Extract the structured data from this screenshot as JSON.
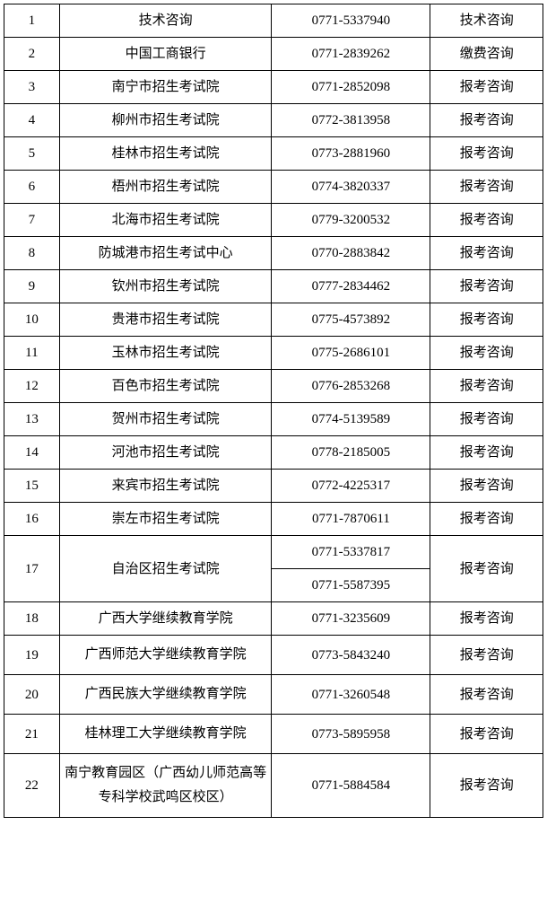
{
  "table": {
    "background_color": "#ffffff",
    "border_color": "#000000",
    "text_color": "#000000",
    "font_size": 15,
    "font_family": "SimSun",
    "columns": {
      "num_width": 60,
      "org_width": 230,
      "phone_width": 172,
      "type_width": 122
    },
    "rows": [
      {
        "num": "1",
        "org": "技术咨询",
        "phones": [
          "0771-5337940"
        ],
        "type": "技术咨询"
      },
      {
        "num": "2",
        "org": "中国工商银行",
        "phones": [
          "0771-2839262"
        ],
        "type": "缴费咨询"
      },
      {
        "num": "3",
        "org": "南宁市招生考试院",
        "phones": [
          "0771-2852098"
        ],
        "type": "报考咨询"
      },
      {
        "num": "4",
        "org": "柳州市招生考试院",
        "phones": [
          "0772-3813958"
        ],
        "type": "报考咨询"
      },
      {
        "num": "5",
        "org": "桂林市招生考试院",
        "phones": [
          "0773-2881960"
        ],
        "type": "报考咨询"
      },
      {
        "num": "6",
        "org": "梧州市招生考试院",
        "phones": [
          "0774-3820337"
        ],
        "type": "报考咨询"
      },
      {
        "num": "7",
        "org": "北海市招生考试院",
        "phones": [
          "0779-3200532"
        ],
        "type": "报考咨询"
      },
      {
        "num": "8",
        "org": "防城港市招生考试中心",
        "phones": [
          "0770-2883842"
        ],
        "type": "报考咨询"
      },
      {
        "num": "9",
        "org": "钦州市招生考试院",
        "phones": [
          "0777-2834462"
        ],
        "type": "报考咨询"
      },
      {
        "num": "10",
        "org": "贵港市招生考试院",
        "phones": [
          "0775-4573892"
        ],
        "type": "报考咨询"
      },
      {
        "num": "11",
        "org": "玉林市招生考试院",
        "phones": [
          "0775-2686101"
        ],
        "type": "报考咨询"
      },
      {
        "num": "12",
        "org": "百色市招生考试院",
        "phones": [
          "0776-2853268"
        ],
        "type": "报考咨询"
      },
      {
        "num": "13",
        "org": "贺州市招生考试院",
        "phones": [
          "0774-5139589"
        ],
        "type": "报考咨询"
      },
      {
        "num": "14",
        "org": "河池市招生考试院",
        "phones": [
          "0778-2185005"
        ],
        "type": "报考咨询"
      },
      {
        "num": "15",
        "org": "来宾市招生考试院",
        "phones": [
          "0772-4225317"
        ],
        "type": "报考咨询"
      },
      {
        "num": "16",
        "org": "崇左市招生考试院",
        "phones": [
          "0771-7870611"
        ],
        "type": "报考咨询"
      },
      {
        "num": "17",
        "org": "自治区招生考试院",
        "phones": [
          "0771-5337817",
          "0771-5587395"
        ],
        "type": "报考咨询"
      },
      {
        "num": "18",
        "org": "广西大学继续教育学院",
        "phones": [
          "0771-3235609"
        ],
        "type": "报考咨询"
      },
      {
        "num": "19",
        "org": "广西师范大学继续教育学院",
        "phones": [
          "0773-5843240"
        ],
        "type": "报考咨询",
        "multiline": true
      },
      {
        "num": "20",
        "org": "广西民族大学继续教育学院",
        "phones": [
          "0771-3260548"
        ],
        "type": "报考咨询",
        "multiline": true
      },
      {
        "num": "21",
        "org": "桂林理工大学继续教育学院",
        "phones": [
          "0773-5895958"
        ],
        "type": "报考咨询",
        "multiline": true
      },
      {
        "num": "22",
        "org": "南宁教育园区（广西幼儿师范高等专科学校武鸣区校区）",
        "phones": [
          "0771-5884584"
        ],
        "type": "报考咨询",
        "multiline": true
      }
    ]
  }
}
